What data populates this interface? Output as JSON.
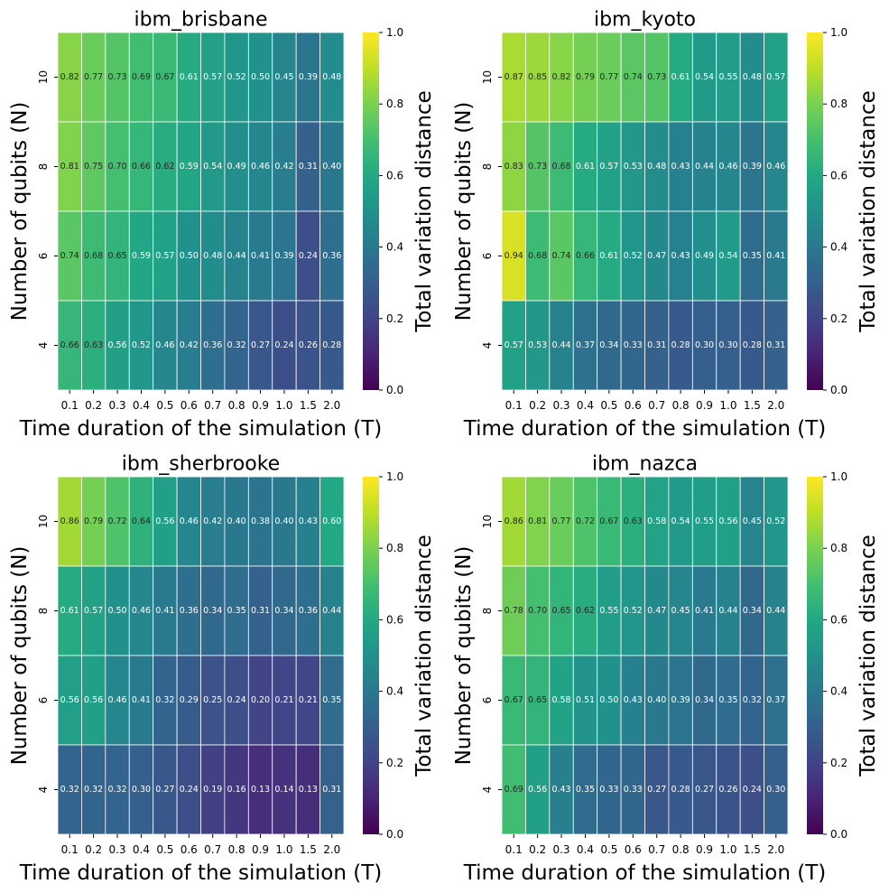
{
  "chart_data": [
    {
      "type": "heatmap",
      "title": "ibm_brisbane",
      "xlabel": "Time duration of the simulation (T)",
      "ylabel": "Number of qubits (N)",
      "colorbar_label": "Total variation distance",
      "colormap": "viridis",
      "vmin": 0.0,
      "vmax": 1.0,
      "colorbar_ticks": [
        "0.0",
        "0.2",
        "0.4",
        "0.6",
        "0.8",
        "1.0"
      ],
      "x_categories": [
        "0.1",
        "0.2",
        "0.3",
        "0.4",
        "0.5",
        "0.6",
        "0.7",
        "0.8",
        "0.9",
        "1.0",
        "1.5",
        "2.0"
      ],
      "y_categories": [
        "10",
        "8",
        "6",
        "4"
      ],
      "values": [
        [
          0.82,
          0.77,
          0.73,
          0.69,
          0.67,
          0.61,
          0.57,
          0.52,
          0.5,
          0.45,
          0.39,
          0.48
        ],
        [
          0.81,
          0.75,
          0.7,
          0.66,
          0.62,
          0.59,
          0.54,
          0.49,
          0.46,
          0.42,
          0.31,
          0.4
        ],
        [
          0.74,
          0.68,
          0.65,
          0.59,
          0.57,
          0.5,
          0.48,
          0.44,
          0.41,
          0.39,
          0.24,
          0.36
        ],
        [
          0.66,
          0.63,
          0.56,
          0.52,
          0.46,
          0.42,
          0.36,
          0.32,
          0.27,
          0.24,
          0.26,
          0.28
        ]
      ]
    },
    {
      "type": "heatmap",
      "title": "ibm_kyoto",
      "xlabel": "Time duration of the simulation (T)",
      "ylabel": "Number of qubits (N)",
      "colorbar_label": "Total variation distance",
      "colormap": "viridis",
      "vmin": 0.0,
      "vmax": 1.0,
      "colorbar_ticks": [
        "0.0",
        "0.2",
        "0.4",
        "0.6",
        "0.8",
        "1.0"
      ],
      "x_categories": [
        "0.1",
        "0.2",
        "0.3",
        "0.4",
        "0.5",
        "0.6",
        "0.7",
        "0.8",
        "0.9",
        "1.0",
        "1.5",
        "2.0"
      ],
      "y_categories": [
        "10",
        "8",
        "6",
        "4"
      ],
      "values": [
        [
          0.87,
          0.85,
          0.82,
          0.79,
          0.77,
          0.74,
          0.73,
          0.61,
          0.54,
          0.55,
          0.48,
          0.57
        ],
        [
          0.83,
          0.73,
          0.68,
          0.61,
          0.57,
          0.53,
          0.48,
          0.43,
          0.44,
          0.46,
          0.39,
          0.46
        ],
        [
          0.94,
          0.68,
          0.74,
          0.66,
          0.61,
          0.52,
          0.47,
          0.43,
          0.49,
          0.54,
          0.35,
          0.41
        ],
        [
          0.57,
          0.53,
          0.44,
          0.37,
          0.34,
          0.33,
          0.31,
          0.28,
          0.3,
          0.3,
          0.28,
          0.31
        ]
      ]
    },
    {
      "type": "heatmap",
      "title": "ibm_sherbrooke",
      "xlabel": "Time duration of the simulation (T)",
      "ylabel": "Number of qubits (N)",
      "colorbar_label": "Total variation distance",
      "colormap": "viridis",
      "vmin": 0.0,
      "vmax": 1.0,
      "colorbar_ticks": [
        "0.0",
        "0.2",
        "0.4",
        "0.6",
        "0.8",
        "1.0"
      ],
      "x_categories": [
        "0.1",
        "0.2",
        "0.3",
        "0.4",
        "0.5",
        "0.6",
        "0.7",
        "0.8",
        "0.9",
        "1.0",
        "1.5",
        "2.0"
      ],
      "y_categories": [
        "10",
        "8",
        "6",
        "4"
      ],
      "values": [
        [
          0.86,
          0.79,
          0.72,
          0.64,
          0.56,
          0.46,
          0.42,
          0.4,
          0.38,
          0.4,
          0.43,
          0.6
        ],
        [
          0.61,
          0.57,
          0.5,
          0.46,
          0.41,
          0.36,
          0.34,
          0.35,
          0.31,
          0.34,
          0.36,
          0.44
        ],
        [
          0.56,
          0.56,
          0.46,
          0.41,
          0.32,
          0.29,
          0.25,
          0.24,
          0.2,
          0.21,
          0.21,
          0.35
        ],
        [
          0.32,
          0.32,
          0.32,
          0.3,
          0.27,
          0.24,
          0.19,
          0.16,
          0.13,
          0.14,
          0.13,
          0.31
        ]
      ]
    },
    {
      "type": "heatmap",
      "title": "ibm_nazca",
      "xlabel": "Time duration of the simulation (T)",
      "ylabel": "Number of qubits (N)",
      "colorbar_label": "Total variation distance",
      "colormap": "viridis",
      "vmin": 0.0,
      "vmax": 1.0,
      "colorbar_ticks": [
        "0.0",
        "0.2",
        "0.4",
        "0.6",
        "0.8",
        "1.0"
      ],
      "x_categories": [
        "0.1",
        "0.2",
        "0.3",
        "0.4",
        "0.5",
        "0.6",
        "0.7",
        "0.8",
        "0.9",
        "1.0",
        "1.5",
        "2.0"
      ],
      "y_categories": [
        "10",
        "8",
        "6",
        "4"
      ],
      "values": [
        [
          0.86,
          0.81,
          0.77,
          0.72,
          0.67,
          0.63,
          0.58,
          0.54,
          0.55,
          0.56,
          0.45,
          0.52
        ],
        [
          0.78,
          0.7,
          0.65,
          0.62,
          0.55,
          0.52,
          0.47,
          0.45,
          0.41,
          0.44,
          0.34,
          0.44
        ],
        [
          0.67,
          0.65,
          0.58,
          0.51,
          0.5,
          0.43,
          0.4,
          0.39,
          0.34,
          0.35,
          0.32,
          0.37
        ],
        [
          0.69,
          0.56,
          0.43,
          0.35,
          0.33,
          0.33,
          0.27,
          0.28,
          0.27,
          0.26,
          0.24,
          0.3
        ]
      ]
    }
  ]
}
